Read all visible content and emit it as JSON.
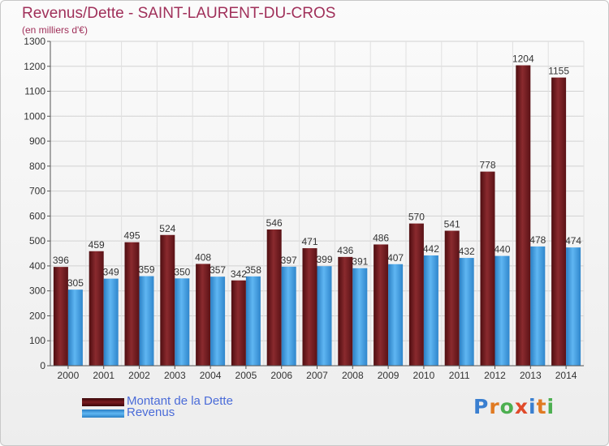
{
  "title": "Revenus/Dette - SAINT-LAURENT-DU-CROS",
  "subtitle": "(en milliers d'€)",
  "colors": {
    "dette": "#7a1c20",
    "revenus": "#3f9fe6",
    "title": "#a0305a",
    "legend_text": "#4a6bd8"
  },
  "legend": {
    "dette": "Montant de la Dette",
    "revenus": "Revenus"
  },
  "logo": {
    "text": "Proxiti",
    "letter_colors": [
      "#3a7fd0",
      "#e07a22",
      "#4caf50",
      "#e04a2a",
      "#3a7fd0",
      "#e07a22",
      "#4caf50"
    ]
  },
  "chart_data": {
    "type": "bar",
    "categories": [
      "2000",
      "2001",
      "2002",
      "2003",
      "2004",
      "2005",
      "2006",
      "2007",
      "2008",
      "2009",
      "2010",
      "2011",
      "2012",
      "2013",
      "2014"
    ],
    "series": [
      {
        "name": "Montant de la Dette",
        "values": [
          396,
          459,
          495,
          524,
          408,
          342,
          546,
          471,
          436,
          486,
          570,
          541,
          778,
          1204,
          1155
        ]
      },
      {
        "name": "Revenus",
        "values": [
          305,
          349,
          359,
          350,
          357,
          358,
          397,
          399,
          391,
          407,
          442,
          432,
          440,
          478,
          474
        ]
      }
    ],
    "ylim": [
      0,
      1300
    ],
    "yticks": [
      0,
      100,
      200,
      300,
      400,
      500,
      600,
      700,
      800,
      900,
      1000,
      1100,
      1200,
      1300
    ],
    "grid": true,
    "legend_position": "bottom-left"
  }
}
